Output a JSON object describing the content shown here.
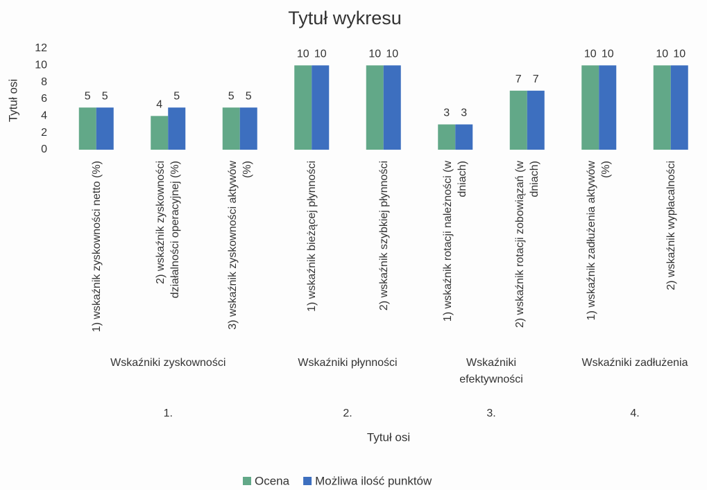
{
  "chart_data": {
    "type": "bar",
    "title": "Tytuł wykresu",
    "y_label": "Tytuł osi",
    "x_label": "Tytuł osi",
    "groups": [
      {
        "name": "Wskaźniki zyskowności",
        "number": "1.",
        "categories": [
          "1) wskaźnik zyskowności netto (%)",
          "2) wskaźnik zyskowności działalności operacyjnej (%)",
          "3) wskaźnik zyskowności aktywów (%)"
        ]
      },
      {
        "name": "Wskaźniki płynności",
        "number": "2.",
        "categories": [
          "1) wskaźnik bieżącej płynności",
          "2) wskaźnik szybkiej płynności"
        ]
      },
      {
        "name": "Wskaźniki efektywności",
        "number": "3.",
        "categories": [
          "1) wskaźnik rotacji należności (w dniach)",
          "2) wskaźnik rotacji zobowiązań (w dniach)"
        ]
      },
      {
        "name": "Wskaźniki zadłużenia",
        "number": "4.",
        "categories": [
          "1) wskaźnik zadłużenia aktywów (%)",
          "2) wskaźnik wypłacalności"
        ]
      }
    ],
    "series": [
      {
        "name": "Ocena",
        "color": "#62a888",
        "values": [
          5,
          4,
          5,
          10,
          10,
          3,
          7,
          10,
          10
        ]
      },
      {
        "name": "Możliwa ilość punktów",
        "color": "#3d6fbf",
        "values": [
          5,
          5,
          5,
          10,
          10,
          3,
          7,
          10,
          10
        ]
      }
    ],
    "ylim": [
      0,
      12
    ],
    "yticks": [
      0,
      2,
      4,
      6,
      8,
      10,
      12
    ],
    "grid": false
  }
}
